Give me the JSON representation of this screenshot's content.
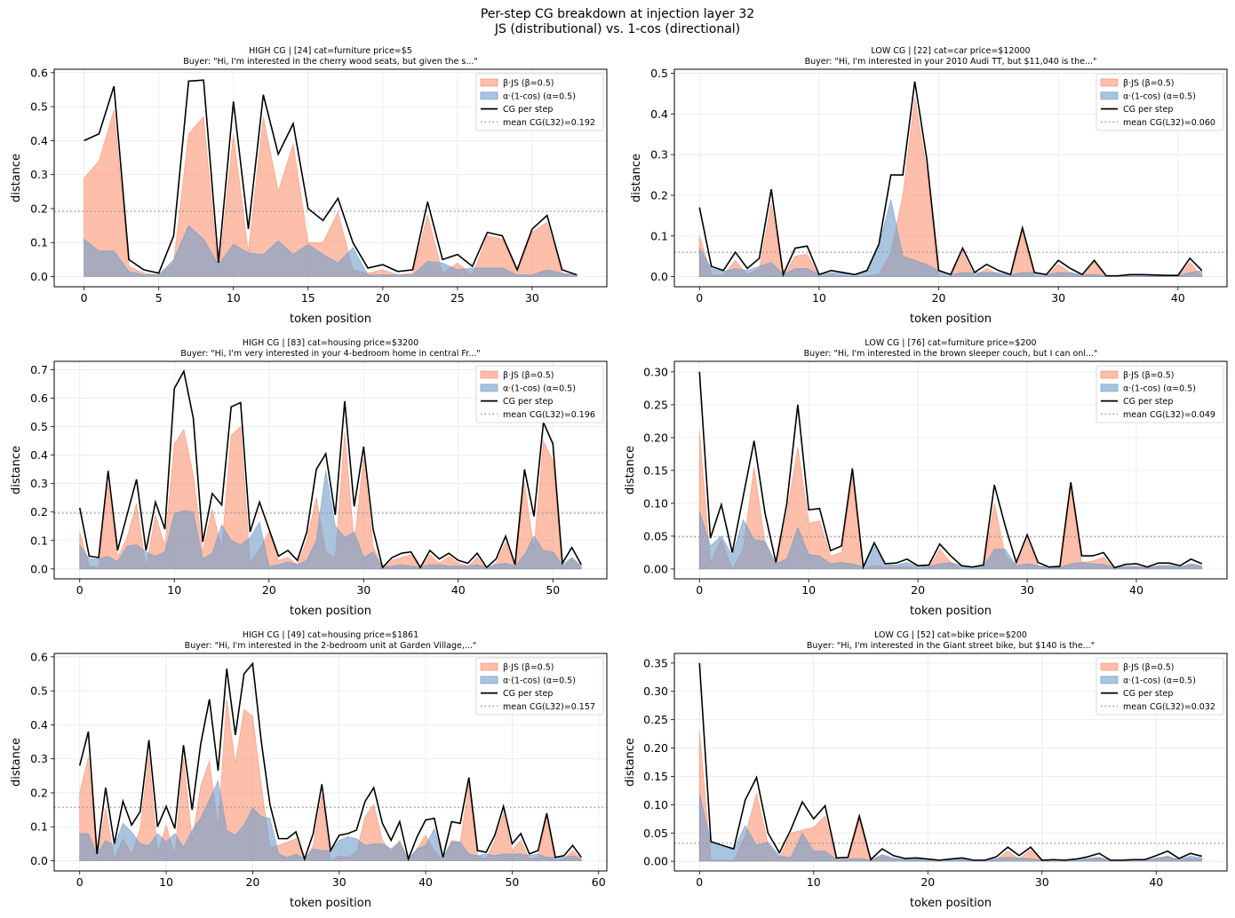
{
  "figure": {
    "title_line1": "Per-step CG breakdown at injection layer 32",
    "title_line2": "JS (distributional) vs. 1-cos (directional)"
  },
  "legend": {
    "js_label": "β·JS (β=0.5)",
    "cos_label": "α·(1-cos) (α=0.5)",
    "cg_label": "CG per step",
    "mean_prefix": "mean CG(L32)="
  },
  "colors": {
    "js_fill": "#fc9272",
    "cos_fill": "#6f9cc9",
    "cg_line": "#000000",
    "mean_line": "#999999",
    "grid": "#e8e8e8"
  },
  "chart_data": [
    {
      "type": "area",
      "title_line1": "HIGH CG | [24] cat=furniture  price=$5",
      "title_line2": "Buyer: \"Hi, I'm interested in the cherry wood seats, but given the s...\"",
      "xlabel": "token position",
      "ylabel": "distance",
      "xlim": [
        -2,
        35
      ],
      "ylim": [
        -0.03,
        0.61
      ],
      "xticks": [
        0,
        5,
        10,
        15,
        20,
        25,
        30
      ],
      "yticks": [
        0.0,
        0.1,
        0.2,
        0.3,
        0.4,
        0.5,
        0.6
      ],
      "ytick_decimals": 1,
      "grid": true,
      "legend_position": "upper-right",
      "mean_cg": 0.192,
      "mean_label": "0.192",
      "cg": [
        0.4,
        0.42,
        0.56,
        0.05,
        0.02,
        0.01,
        0.12,
        0.575,
        0.578,
        0.04,
        0.515,
        0.14,
        0.535,
        0.36,
        0.45,
        0.2,
        0.165,
        0.23,
        0.1,
        0.025,
        0.035,
        0.015,
        0.02,
        0.22,
        0.05,
        0.065,
        0.03,
        0.13,
        0.12,
        0.02,
        0.14,
        0.18,
        0.02,
        0.005
      ],
      "js": [
        0.29,
        0.34,
        0.49,
        0.03,
        0.01,
        0.005,
        0.04,
        0.42,
        0.47,
        0.005,
        0.42,
        0.07,
        0.47,
        0.25,
        0.39,
        0.1,
        0.1,
        0.19,
        0.02,
        0.01,
        0.02,
        0.005,
        0.01,
        0.18,
        0.01,
        0.04,
        0.005,
        0.12,
        0.11,
        0.015,
        0.13,
        0.16,
        0.01,
        0.0
      ],
      "cos": [
        0.11,
        0.075,
        0.075,
        0.015,
        0.005,
        0.005,
        0.05,
        0.15,
        0.11,
        0.035,
        0.095,
        0.07,
        0.065,
        0.105,
        0.065,
        0.095,
        0.065,
        0.04,
        0.085,
        0.005,
        0.005,
        0.005,
        0.005,
        0.045,
        0.04,
        0.02,
        0.025,
        0.025,
        0.025,
        0.005,
        0.005,
        0.02,
        0.01,
        0.005
      ]
    },
    {
      "type": "area",
      "title_line1": "LOW CG | [22] cat=car  price=$12000",
      "title_line2": "Buyer: \"Hi, I'm interested in your 2010 Audi TT, but $11,040 is the...\"",
      "xlabel": "token position",
      "ylabel": "distance",
      "xlim": [
        -2.1,
        44.1
      ],
      "ylim": [
        -0.025,
        0.51
      ],
      "xticks": [
        0,
        10,
        20,
        30,
        40
      ],
      "yticks": [
        0.0,
        0.1,
        0.2,
        0.3,
        0.4,
        0.5
      ],
      "ytick_decimals": 1,
      "grid": true,
      "legend_position": "upper-right",
      "mean_cg": 0.06,
      "mean_label": "0.060",
      "cg": [
        0.17,
        0.025,
        0.015,
        0.06,
        0.02,
        0.045,
        0.215,
        0.005,
        0.07,
        0.075,
        0.005,
        0.015,
        0.01,
        0.005,
        0.015,
        0.08,
        0.25,
        0.25,
        0.48,
        0.29,
        0.015,
        0.005,
        0.07,
        0.01,
        0.03,
        0.015,
        0.005,
        0.12,
        0.01,
        0.005,
        0.04,
        0.02,
        0.005,
        0.04,
        0.002,
        0.002,
        0.005,
        0.005,
        0.004,
        0.003,
        0.003,
        0.045,
        0.015
      ],
      "js": [
        0.1,
        0.005,
        0.003,
        0.04,
        0.005,
        0.02,
        0.18,
        0.0,
        0.05,
        0.055,
        0.0,
        0.005,
        0.002,
        0.0,
        0.002,
        0.005,
        0.06,
        0.2,
        0.44,
        0.26,
        0.0,
        0.0,
        0.06,
        0.0,
        0.02,
        0.005,
        0.0,
        0.11,
        0.0,
        0.0,
        0.03,
        0.01,
        0.0,
        0.035,
        0.0,
        0.0,
        0.002,
        0.002,
        0.002,
        0.001,
        0.001,
        0.035,
        0.0
      ],
      "cos": [
        0.07,
        0.02,
        0.012,
        0.02,
        0.015,
        0.025,
        0.035,
        0.005,
        0.02,
        0.02,
        0.005,
        0.01,
        0.008,
        0.005,
        0.013,
        0.075,
        0.19,
        0.05,
        0.04,
        0.03,
        0.015,
        0.005,
        0.01,
        0.01,
        0.01,
        0.01,
        0.005,
        0.01,
        0.01,
        0.005,
        0.01,
        0.01,
        0.005,
        0.005,
        0.002,
        0.002,
        0.003,
        0.003,
        0.002,
        0.002,
        0.002,
        0.01,
        0.015
      ]
    },
    {
      "type": "area",
      "title_line1": "HIGH CG | [83] cat=housing  price=$3200",
      "title_line2": "Buyer: \"Hi, I'm very interested in your 4-bedroom home in central Fr...\"",
      "xlabel": "token position",
      "ylabel": "distance",
      "xlim": [
        -2.7,
        55.7
      ],
      "ylim": [
        -0.035,
        0.73
      ],
      "xticks": [
        0,
        10,
        20,
        30,
        40,
        50
      ],
      "yticks": [
        0.0,
        0.1,
        0.2,
        0.3,
        0.4,
        0.5,
        0.6,
        0.7
      ],
      "ytick_decimals": 1,
      "grid": true,
      "legend_position": "upper-right",
      "mean_cg": 0.196,
      "mean_label": "0.196",
      "cg": [
        0.215,
        0.045,
        0.04,
        0.345,
        0.065,
        0.19,
        0.315,
        0.065,
        0.235,
        0.14,
        0.635,
        0.695,
        0.53,
        0.095,
        0.265,
        0.225,
        0.57,
        0.585,
        0.13,
        0.235,
        0.14,
        0.045,
        0.065,
        0.03,
        0.13,
        0.35,
        0.405,
        0.19,
        0.59,
        0.22,
        0.43,
        0.14,
        0.005,
        0.04,
        0.055,
        0.06,
        0.005,
        0.065,
        0.035,
        0.055,
        0.03,
        0.02,
        0.055,
        0.005,
        0.035,
        0.115,
        0.015,
        0.35,
        0.185,
        0.515,
        0.44,
        0.02,
        0.075,
        0.015
      ],
      "js": [
        0.13,
        0.01,
        0.005,
        0.3,
        0.04,
        0.11,
        0.23,
        0.005,
        0.19,
        0.08,
        0.44,
        0.49,
        0.33,
        0.06,
        0.21,
        0.07,
        0.47,
        0.5,
        0.02,
        0.07,
        0.13,
        0.03,
        0.04,
        0.015,
        0.1,
        0.25,
        0.06,
        0.04,
        0.48,
        0.09,
        0.39,
        0.08,
        0.0,
        0.03,
        0.04,
        0.05,
        0.0,
        0.05,
        0.02,
        0.045,
        0.02,
        0.01,
        0.04,
        0.0,
        0.02,
        0.095,
        0.005,
        0.3,
        0.07,
        0.45,
        0.38,
        0.005,
        0.035,
        0.005
      ],
      "cos": [
        0.085,
        0.035,
        0.035,
        0.045,
        0.025,
        0.08,
        0.085,
        0.06,
        0.045,
        0.06,
        0.195,
        0.205,
        0.2,
        0.035,
        0.055,
        0.155,
        0.1,
        0.085,
        0.11,
        0.165,
        0.01,
        0.015,
        0.025,
        0.015,
        0.03,
        0.1,
        0.345,
        0.15,
        0.11,
        0.13,
        0.04,
        0.06,
        0.005,
        0.01,
        0.015,
        0.01,
        0.005,
        0.015,
        0.015,
        0.01,
        0.01,
        0.01,
        0.015,
        0.005,
        0.015,
        0.02,
        0.01,
        0.05,
        0.115,
        0.065,
        0.06,
        0.015,
        0.04,
        0.01
      ]
    },
    {
      "type": "area",
      "title_line1": "LOW CG | [76] cat=furniture  price=$200",
      "title_line2": "Buyer: \"Hi, I'm interested in the brown sleeper couch, but I can onl...\"",
      "xlabel": "token position",
      "ylabel": "distance",
      "xlim": [
        -2.3,
        48.3
      ],
      "ylim": [
        -0.015,
        0.316
      ],
      "xticks": [
        0,
        10,
        20,
        30,
        40
      ],
      "yticks": [
        0.0,
        0.05,
        0.1,
        0.15,
        0.2,
        0.25,
        0.3
      ],
      "ytick_decimals": 2,
      "grid": true,
      "legend_position": "upper-right",
      "mean_cg": 0.049,
      "mean_label": "0.049",
      "cg": [
        0.3,
        0.047,
        0.098,
        0.025,
        0.11,
        0.195,
        0.085,
        0.01,
        0.1,
        0.25,
        0.09,
        0.092,
        0.028,
        0.035,
        0.153,
        0.003,
        0.04,
        0.008,
        0.009,
        0.015,
        0.005,
        0.006,
        0.038,
        0.02,
        0.005,
        0.003,
        0.006,
        0.128,
        0.065,
        0.01,
        0.052,
        0.01,
        0.003,
        0.004,
        0.132,
        0.02,
        0.02,
        0.025,
        0.002,
        0.007,
        0.008,
        0.003,
        0.009,
        0.009,
        0.005,
        0.015,
        0.008
      ],
      "js": [
        0.21,
        0.01,
        0.045,
        0.0,
        0.03,
        0.155,
        0.04,
        0.005,
        0.085,
        0.185,
        0.07,
        0.073,
        0.02,
        0.025,
        0.145,
        0.0,
        0.005,
        0.003,
        0.003,
        0.004,
        0.001,
        0.002,
        0.03,
        0.01,
        0.0,
        0.0,
        0.002,
        0.1,
        0.02,
        0.005,
        0.045,
        0.005,
        0.0,
        0.002,
        0.125,
        0.01,
        0.012,
        0.018,
        0.0,
        0.003,
        0.004,
        0.001,
        0.004,
        0.003,
        0.002,
        0.007,
        0.003
      ],
      "cos": [
        0.088,
        0.035,
        0.05,
        0.02,
        0.075,
        0.045,
        0.042,
        0.008,
        0.015,
        0.063,
        0.022,
        0.02,
        0.008,
        0.01,
        0.008,
        0.003,
        0.035,
        0.006,
        0.006,
        0.01,
        0.004,
        0.004,
        0.008,
        0.01,
        0.005,
        0.003,
        0.004,
        0.03,
        0.03,
        0.005,
        0.008,
        0.005,
        0.003,
        0.002,
        0.008,
        0.01,
        0.008,
        0.007,
        0.002,
        0.004,
        0.004,
        0.002,
        0.005,
        0.006,
        0.003,
        0.008,
        0.005
      ]
    },
    {
      "type": "area",
      "title_line1": "HIGH CG | [49] cat=housing  price=$1861",
      "title_line2": "Buyer: \"Hi, I'm interested in the 2-bedroom unit at Garden Village,...\"",
      "xlabel": "token position",
      "ylabel": "distance",
      "xlim": [
        -2.95,
        60.95
      ],
      "ylim": [
        -0.03,
        0.61
      ],
      "xticks": [
        0,
        10,
        20,
        30,
        40,
        50,
        60
      ],
      "yticks": [
        0.0,
        0.1,
        0.2,
        0.3,
        0.4,
        0.5,
        0.6
      ],
      "ytick_decimals": 1,
      "grid": true,
      "legend_position": "upper-right",
      "mean_cg": 0.157,
      "mean_label": "0.157",
      "cg": [
        0.28,
        0.38,
        0.02,
        0.215,
        0.05,
        0.175,
        0.105,
        0.145,
        0.355,
        0.1,
        0.16,
        0.095,
        0.34,
        0.15,
        0.345,
        0.475,
        0.265,
        0.565,
        0.37,
        0.55,
        0.58,
        0.35,
        0.165,
        0.065,
        0.065,
        0.085,
        0.005,
        0.08,
        0.225,
        0.03,
        0.075,
        0.08,
        0.09,
        0.175,
        0.215,
        0.11,
        0.06,
        0.115,
        0.005,
        0.07,
        0.12,
        0.125,
        0.01,
        0.115,
        0.11,
        0.245,
        0.03,
        0.025,
        0.075,
        0.16,
        0.05,
        0.08,
        0.02,
        0.03,
        0.14,
        0.01,
        0.015,
        0.045,
        0.01
      ],
      "js": [
        0.2,
        0.305,
        0.0,
        0.155,
        0.005,
        0.065,
        0.02,
        0.095,
        0.31,
        0.02,
        0.105,
        0.015,
        0.3,
        0.06,
        0.22,
        0.295,
        0.095,
        0.475,
        0.285,
        0.445,
        0.425,
        0.22,
        0.04,
        0.045,
        0.055,
        0.065,
        0.0,
        0.045,
        0.195,
        0.0,
        0.015,
        0.01,
        0.025,
        0.13,
        0.165,
        0.06,
        0.025,
        0.06,
        0.0,
        0.035,
        0.075,
        0.03,
        0.0,
        0.06,
        0.055,
        0.225,
        0.015,
        0.005,
        0.06,
        0.14,
        0.03,
        0.06,
        0.005,
        0.01,
        0.13,
        0.0,
        0.005,
        0.03,
        0.005
      ],
      "cos": [
        0.08,
        0.08,
        0.02,
        0.06,
        0.045,
        0.11,
        0.085,
        0.05,
        0.045,
        0.08,
        0.055,
        0.08,
        0.04,
        0.09,
        0.125,
        0.18,
        0.235,
        0.09,
        0.075,
        0.105,
        0.155,
        0.13,
        0.125,
        0.02,
        0.01,
        0.02,
        0.005,
        0.035,
        0.03,
        0.03,
        0.06,
        0.07,
        0.065,
        0.045,
        0.05,
        0.05,
        0.035,
        0.055,
        0.005,
        0.035,
        0.045,
        0.095,
        0.01,
        0.055,
        0.055,
        0.02,
        0.015,
        0.02,
        0.015,
        0.02,
        0.02,
        0.02,
        0.015,
        0.02,
        0.01,
        0.01,
        0.01,
        0.015,
        0.005
      ]
    },
    {
      "type": "area",
      "title_line1": "LOW CG | [52] cat=bike  price=$200",
      "title_line2": "Buyer: \"Hi, I'm interested in the Giant street bike, but $140 is the...\"",
      "xlabel": "token position",
      "ylabel": "distance",
      "xlim": [
        -2.2,
        46.2
      ],
      "ylim": [
        -0.017,
        0.367
      ],
      "xticks": [
        0,
        10,
        20,
        30,
        40
      ],
      "yticks": [
        0.0,
        0.05,
        0.1,
        0.15,
        0.2,
        0.25,
        0.3,
        0.35
      ],
      "ytick_decimals": 2,
      "grid": true,
      "legend_position": "upper-right",
      "mean_cg": 0.032,
      "mean_label": "0.032",
      "cg": [
        0.35,
        0.035,
        0.028,
        0.022,
        0.108,
        0.148,
        0.05,
        0.015,
        0.056,
        0.105,
        0.075,
        0.098,
        0.006,
        0.007,
        0.08,
        0.003,
        0.022,
        0.01,
        0.005,
        0.006,
        0.004,
        0.002,
        0.004,
        0.006,
        0.002,
        0.002,
        0.008,
        0.025,
        0.01,
        0.025,
        0.002,
        0.003,
        0.002,
        0.004,
        0.008,
        0.014,
        0.002,
        0.002,
        0.003,
        0.003,
        0.01,
        0.018,
        0.005,
        0.014,
        0.009
      ],
      "js": [
        0.23,
        0.002,
        0.003,
        0.001,
        0.045,
        0.12,
        0.03,
        0.005,
        0.05,
        0.055,
        0.06,
        0.08,
        0.002,
        0.003,
        0.075,
        0.001,
        0.01,
        0.004,
        0.002,
        0.002,
        0.001,
        0.0,
        0.001,
        0.002,
        0.0,
        0.0,
        0.003,
        0.018,
        0.004,
        0.02,
        0.0,
        0.001,
        0.0,
        0.001,
        0.003,
        0.007,
        0.0,
        0.0,
        0.001,
        0.001,
        0.004,
        0.01,
        0.001,
        0.005,
        0.003
      ],
      "cos": [
        0.12,
        0.033,
        0.025,
        0.021,
        0.063,
        0.028,
        0.034,
        0.01,
        0.006,
        0.05,
        0.018,
        0.018,
        0.004,
        0.004,
        0.005,
        0.002,
        0.012,
        0.006,
        0.003,
        0.004,
        0.003,
        0.002,
        0.003,
        0.004,
        0.002,
        0.002,
        0.005,
        0.007,
        0.006,
        0.005,
        0.002,
        0.002,
        0.002,
        0.003,
        0.005,
        0.007,
        0.002,
        0.002,
        0.002,
        0.002,
        0.006,
        0.008,
        0.004,
        0.009,
        0.006
      ]
    }
  ]
}
